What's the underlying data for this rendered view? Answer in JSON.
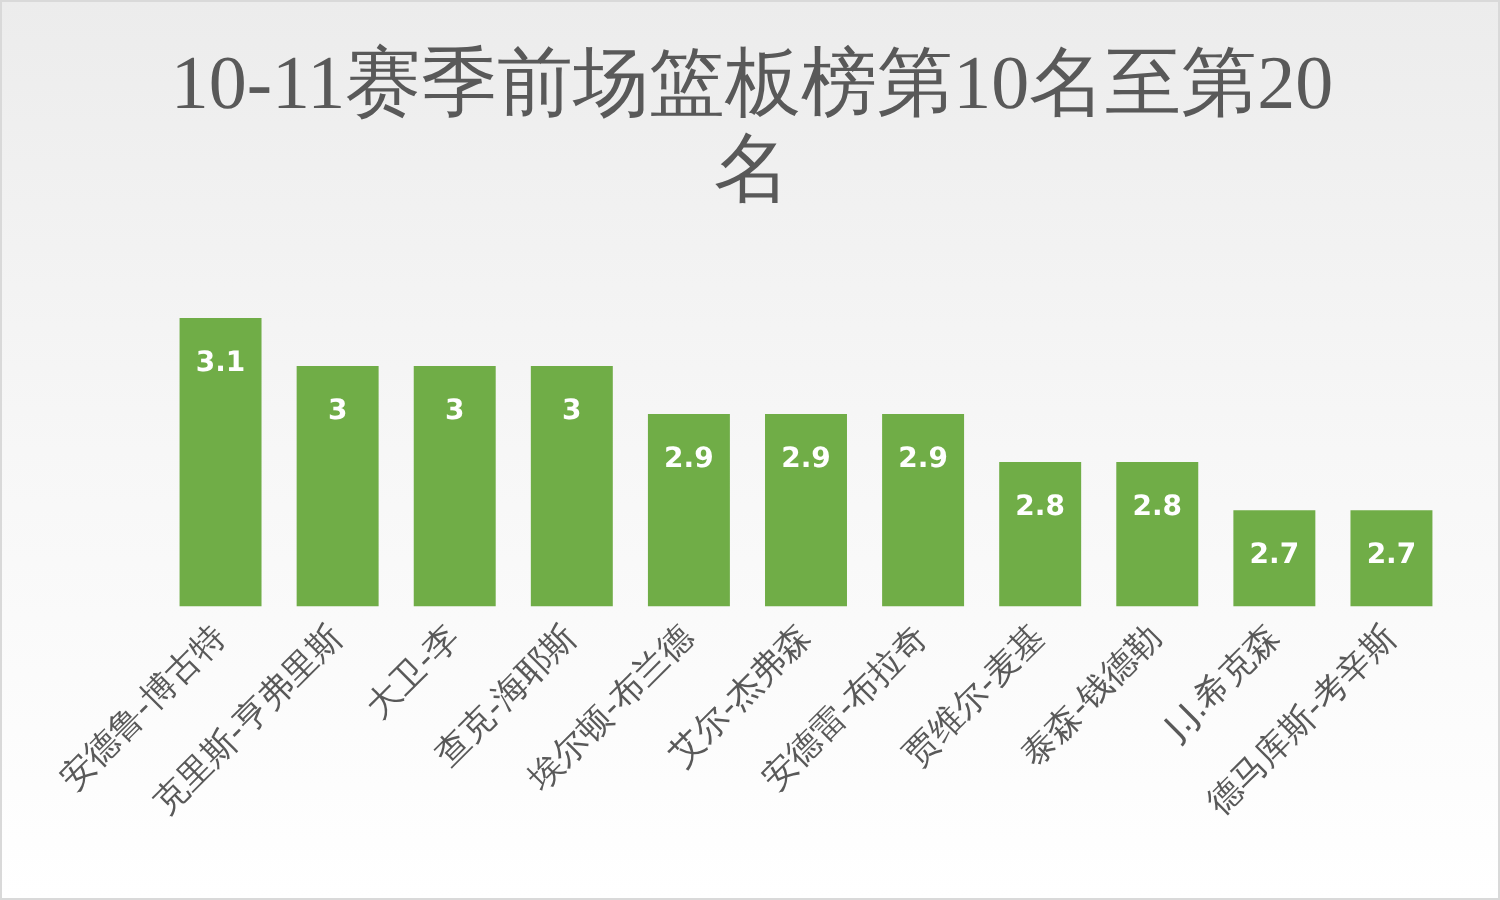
{
  "chart_data": {
    "type": "bar",
    "title": "10-11赛季前场篮板榜第10名至第20名",
    "categories": [
      "安德鲁-博古特",
      "克里斯-亨弗里斯",
      "大卫-李",
      "查克-海耶斯",
      "埃尔顿-布兰德",
      "艾尔-杰弗森",
      "安德雷-布拉奇",
      "贾维尔-麦基",
      "泰森-钱德勒",
      "J.J.希克森",
      "德马库斯-考辛斯"
    ],
    "values": [
      3.1,
      3,
      3,
      3,
      2.9,
      2.9,
      2.9,
      2.8,
      2.8,
      2.7,
      2.7
    ],
    "color": "#70ad47",
    "data_labels": true,
    "tick_labels": "x"
  }
}
